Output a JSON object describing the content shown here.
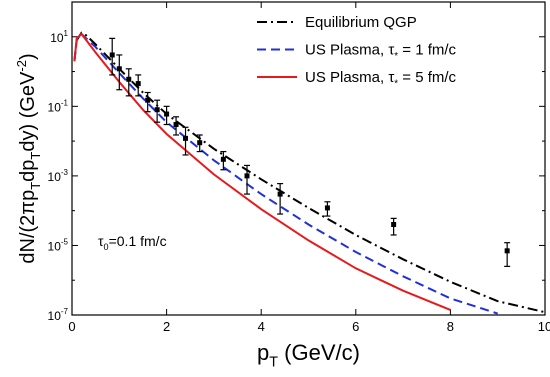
{
  "chart_data": {
    "type": "line",
    "xlabel": [
      "p",
      "T",
      " (GeV/c)"
    ],
    "ylabel": [
      "dN/(2πp",
      "T",
      "dp",
      "T",
      "dy) (GeV",
      "-2",
      ")"
    ],
    "annotation": [
      "τ",
      "0",
      "=0.1 fm/c"
    ],
    "xlim": [
      0,
      10
    ],
    "xticks": [
      0,
      2,
      4,
      6,
      8,
      10
    ],
    "ylim": [
      1e-07,
      100
    ],
    "log_y": true,
    "yticks": [
      {
        "value": 10,
        "label": {
          "base": "10",
          "exp": "1"
        }
      },
      {
        "value": 0.1,
        "label": {
          "base": "10",
          "exp": "-1"
        }
      },
      {
        "value": 0.001,
        "label": {
          "base": "10",
          "exp": "-3"
        }
      },
      {
        "value": 1e-05,
        "label": {
          "base": "10",
          "exp": "-5"
        }
      },
      {
        "value": 1e-07,
        "label": {
          "base": "10",
          "exp": "-7"
        }
      }
    ],
    "yminor_ticks": [
      100,
      1,
      0.01,
      0.0001,
      1e-06
    ],
    "x": [
      0.05,
      0.1,
      0.2,
      0.3,
      0.5,
      1,
      1.5,
      2,
      3,
      4,
      5,
      6,
      7,
      8,
      9,
      10
    ],
    "series": [
      {
        "name": [
          "Equilibrium QGP"
        ],
        "color": "#000000",
        "dash": "dashdot",
        "values": [
          2,
          8,
          13,
          11,
          6,
          1.2,
          0.25,
          0.06,
          0.006,
          0.0008,
          0.00012,
          2e-05,
          4e-06,
          9e-07,
          2.5e-07,
          1.2e-07
        ]
      },
      {
        "name": [
          "US Plasma, τ",
          "*",
          " = 1 fm/c"
        ],
        "color": "#1f2fdc",
        "dash": "dashed",
        "values": [
          2,
          8,
          12,
          9,
          5,
          0.9,
          0.17,
          0.035,
          0.0028,
          0.0003,
          4e-05,
          6.5e-06,
          1.3e-06,
          3e-07,
          1.1e-07,
          null
        ]
      },
      {
        "name": [
          "US Plasma, τ",
          "*",
          " = 5 fm/c"
        ],
        "color": "#e8191d",
        "dash": "solid",
        "values": [
          2,
          9,
          12,
          8,
          3.5,
          0.5,
          0.08,
          0.016,
          0.0011,
          0.00011,
          1.4e-05,
          2.2e-06,
          5e-07,
          1.4e-07,
          null,
          null
        ]
      }
    ],
    "points": {
      "x": [
        0.85,
        1.0,
        1.2,
        1.4,
        1.6,
        1.8,
        2.0,
        2.2,
        2.4,
        2.7,
        3.2,
        3.7,
        4.4,
        5.4,
        6.8,
        9.2
      ],
      "values": [
        3,
        1.2,
        0.6,
        0.45,
        0.15,
        0.08,
        0.06,
        0.03,
        0.012,
        0.009,
        0.003,
        0.001,
        0.0003,
        0.00012,
        4e-05,
        7e-06
      ],
      "y_low": [
        0.8,
        0.3,
        0.2,
        0.2,
        0.07,
        0.035,
        0.03,
        0.015,
        0.004,
        0.005,
        0.0015,
        0.0003,
        8e-05,
        7e-05,
        2e-05,
        2.5e-06
      ],
      "y_high": [
        9,
        3,
        1.2,
        0.8,
        0.25,
        0.15,
        0.1,
        0.05,
        0.025,
        0.015,
        0.005,
        0.002,
        0.0006,
        0.00018,
        6e-05,
        1.2e-05
      ]
    }
  }
}
